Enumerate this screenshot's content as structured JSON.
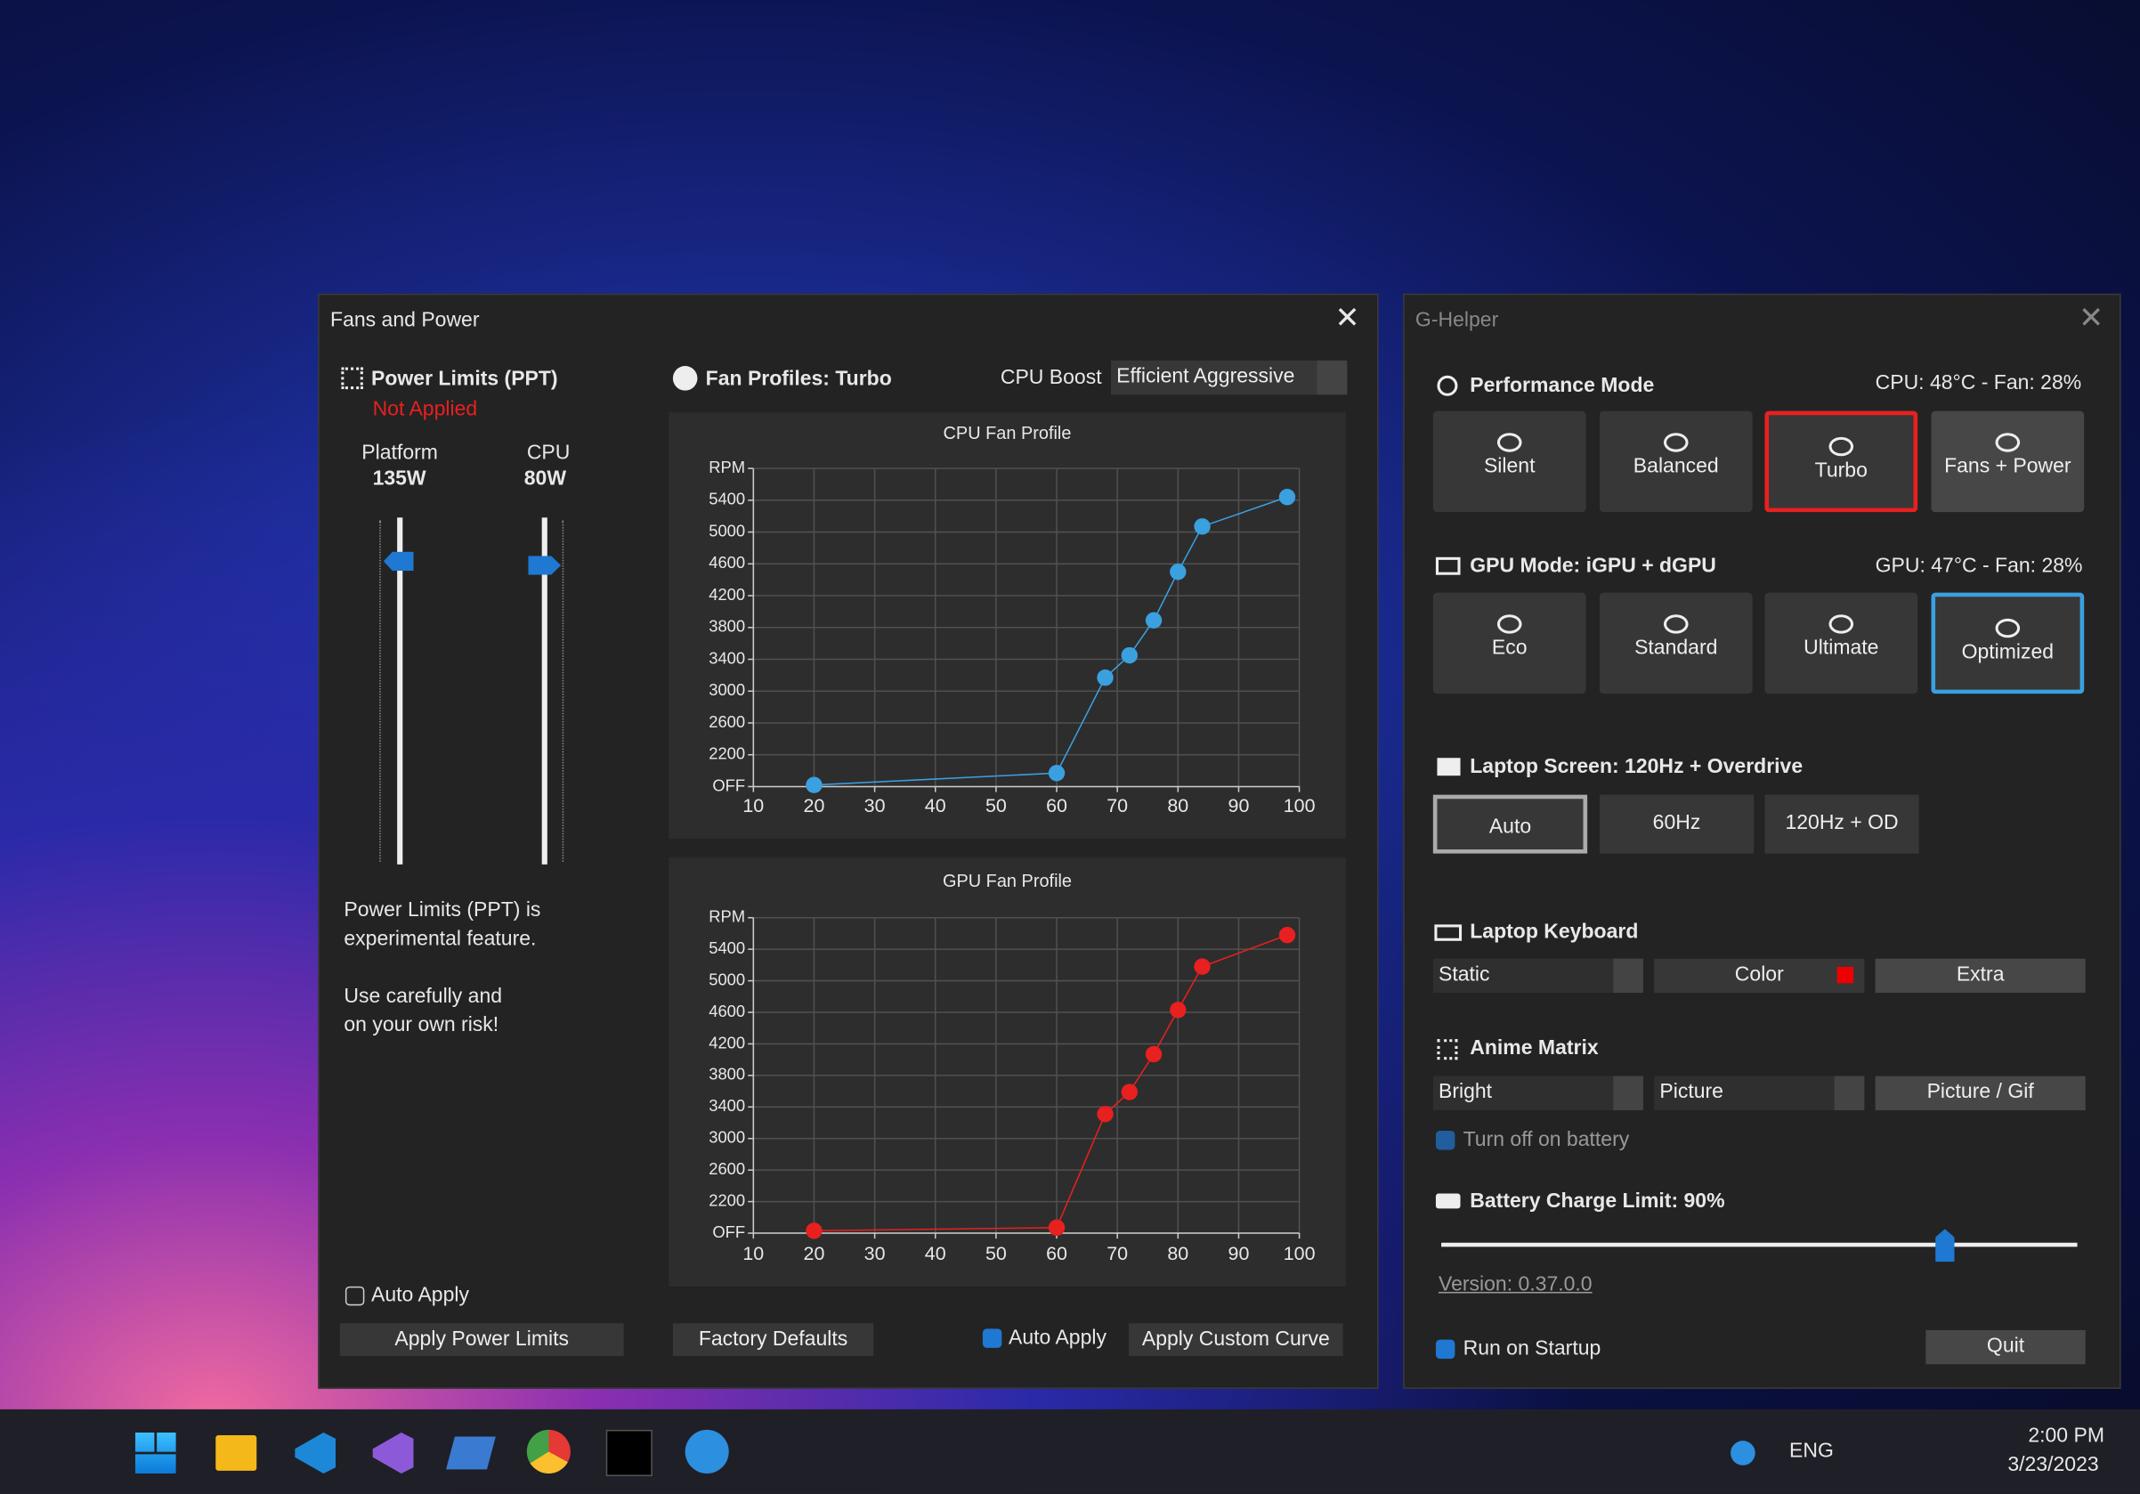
{
  "fans_window": {
    "title": "Fans and Power",
    "power_limits": {
      "title": "Power Limits (PPT)",
      "status": "Not Applied",
      "platform_label": "Platform",
      "platform_value": "135W",
      "cpu_label": "CPU",
      "cpu_value": "80W",
      "note1": "Power Limits (PPT) is",
      "note2": "experimental feature.",
      "note3": "Use carefully and",
      "note4": "on your own risk!",
      "auto_apply": "Auto Apply",
      "apply_button": "Apply Power Limits"
    },
    "fan_profiles": {
      "title": "Fan Profiles: Turbo",
      "cpu_boost_label": "CPU Boost",
      "cpu_boost_value": "Efficient Aggressive",
      "factory_defaults": "Factory Defaults",
      "auto_apply": "Auto Apply",
      "apply_curve": "Apply Custom Curve"
    },
    "charts": [
      {
        "type": "line",
        "title": "CPU Fan Profile",
        "color": "#3aa0e0",
        "x": [
          20,
          60,
          68,
          72,
          76,
          80,
          84,
          98
        ],
        "values": [
          1820,
          1970,
          3170,
          3450,
          3890,
          4500,
          5070,
          5440
        ],
        "xlim": [
          10,
          100
        ],
        "xticks": [
          10,
          20,
          30,
          40,
          50,
          60,
          70,
          80,
          90,
          100
        ],
        "ylim": [
          1800,
          5800
        ],
        "yticks": [
          {
            "value": 1800,
            "label": "OFF"
          },
          2200,
          2600,
          3000,
          3400,
          3800,
          4200,
          4600,
          5000,
          5400,
          {
            "value": 5800,
            "label": "RPM"
          }
        ],
        "grid": true
      },
      {
        "type": "line",
        "title": "GPU Fan Profile",
        "color": "#e82020",
        "x": [
          20,
          60,
          68,
          72,
          76,
          80,
          84,
          98
        ],
        "values": [
          1830,
          1870,
          3310,
          3590,
          4070,
          4630,
          5180,
          5580
        ],
        "xlim": [
          10,
          100
        ],
        "xticks": [
          10,
          20,
          30,
          40,
          50,
          60,
          70,
          80,
          90,
          100
        ],
        "ylim": [
          1800,
          5800
        ],
        "yticks": [
          {
            "value": 1800,
            "label": "OFF"
          },
          2200,
          2600,
          3000,
          3400,
          3800,
          4200,
          4600,
          5000,
          5400,
          {
            "value": 5800,
            "label": "RPM"
          }
        ],
        "grid": true
      }
    ]
  },
  "ghelper_window": {
    "title": "G-Helper",
    "performance": {
      "title": "Performance Mode",
      "status": "CPU: 48°C  -  Fan: 28%",
      "modes": [
        "Silent",
        "Balanced",
        "Turbo",
        "Fans + Power"
      ]
    },
    "gpu": {
      "title": "GPU Mode: iGPU + dGPU",
      "status": "GPU: 47°C  -  Fan: 28%",
      "modes": [
        "Eco",
        "Standard",
        "Ultimate",
        "Optimized"
      ]
    },
    "screen": {
      "title": "Laptop Screen: 120Hz + Overdrive",
      "modes": [
        "Auto",
        "60Hz",
        "120Hz + OD"
      ]
    },
    "keyboard": {
      "title": "Laptop Keyboard",
      "mode": "Static",
      "color": "Color",
      "extra": "Extra"
    },
    "anime": {
      "title": "Anime Matrix",
      "brightness": "Bright",
      "mode": "Picture",
      "button": "Picture / Gif",
      "battery_off": "Turn off on battery"
    },
    "battery": {
      "title": "Battery Charge Limit: 90%"
    },
    "version": "Version: 0.37.0.0",
    "run_on_startup": "Run on Startup",
    "quit": "Quit"
  },
  "taskbar": {
    "language": "ENG",
    "time": "2:00 PM",
    "date": "3/23/2023"
  }
}
